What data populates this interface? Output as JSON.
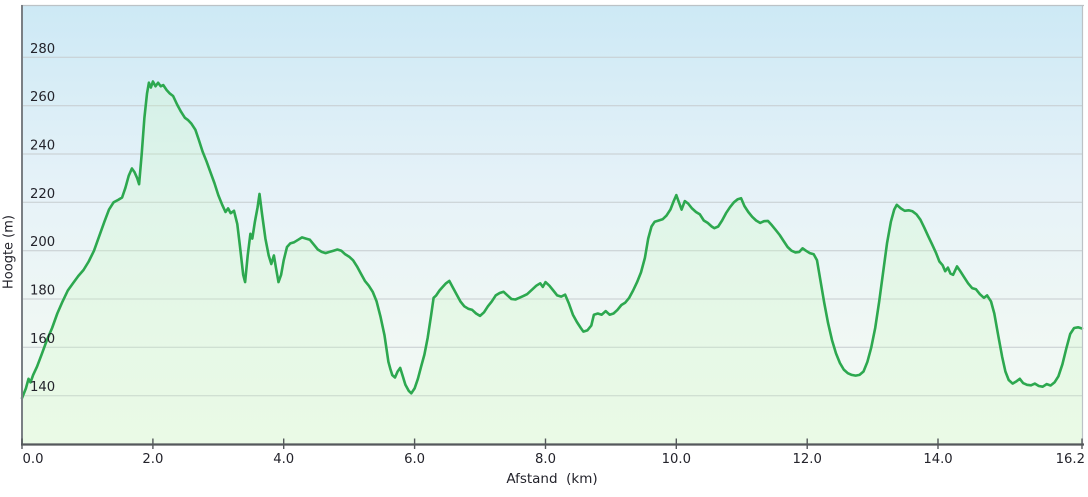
{
  "chart_data": {
    "type": "area",
    "title": "",
    "xlabel": "Afstand  (km)",
    "ylabel": "Hoogte (m)",
    "xlim": [
      0,
      16.2
    ],
    "ylim": [
      120,
      300
    ],
    "x_ticks": [
      0,
      2,
      4,
      6,
      8,
      10,
      12,
      14,
      16.2
    ],
    "x_tick_labels": [
      "0.0",
      "2.0",
      "4.0",
      "6.0",
      "8.0",
      "10.0",
      "12.0",
      "14.0",
      "16.2"
    ],
    "y_ticks": [
      140,
      160,
      180,
      200,
      220,
      240,
      260,
      280
    ],
    "grid": true,
    "legend": false,
    "colors": {
      "line": "#2da84f",
      "fill": "rgba(205,250,195,0.26)",
      "grid": "#c6cccf",
      "axis": "#54585b",
      "axis_left": "#7a7f84",
      "frame": "#bcc2c6",
      "tick_text": "#23232b",
      "bg_top": "#cde9f5",
      "bg_mid": "#e6f2f8",
      "bg_low": "#eff7f4",
      "bg_bottom": "#f4faf3"
    },
    "series": [
      {
        "name": "Hoogte",
        "points": [
          [
            0.0,
            139
          ],
          [
            0.06,
            143
          ],
          [
            0.1,
            147
          ],
          [
            0.13,
            145.5
          ],
          [
            0.17,
            148.5
          ],
          [
            0.23,
            152
          ],
          [
            0.3,
            157
          ],
          [
            0.38,
            163
          ],
          [
            0.46,
            168
          ],
          [
            0.54,
            174
          ],
          [
            0.62,
            179
          ],
          [
            0.7,
            183.5
          ],
          [
            0.78,
            186.5
          ],
          [
            0.86,
            189.5
          ],
          [
            0.94,
            192
          ],
          [
            1.02,
            195.5
          ],
          [
            1.1,
            200
          ],
          [
            1.18,
            206
          ],
          [
            1.26,
            212
          ],
          [
            1.33,
            217
          ],
          [
            1.4,
            220
          ],
          [
            1.47,
            221
          ],
          [
            1.53,
            222
          ],
          [
            1.58,
            226
          ],
          [
            1.63,
            231
          ],
          [
            1.68,
            234
          ],
          [
            1.72,
            232.5
          ],
          [
            1.76,
            230
          ],
          [
            1.79,
            227.5
          ],
          [
            1.83,
            240
          ],
          [
            1.87,
            255
          ],
          [
            1.91,
            265
          ],
          [
            1.94,
            269.5
          ],
          [
            1.97,
            267.5
          ],
          [
            2.0,
            270
          ],
          [
            2.04,
            268
          ],
          [
            2.08,
            269.5
          ],
          [
            2.12,
            268
          ],
          [
            2.16,
            268.5
          ],
          [
            2.21,
            266.5
          ],
          [
            2.26,
            265
          ],
          [
            2.31,
            264
          ],
          [
            2.37,
            260.5
          ],
          [
            2.43,
            257.5
          ],
          [
            2.49,
            255
          ],
          [
            2.54,
            254
          ],
          [
            2.59,
            252.5
          ],
          [
            2.65,
            250
          ],
          [
            2.7,
            246
          ],
          [
            2.76,
            241
          ],
          [
            2.82,
            237
          ],
          [
            2.88,
            232.5
          ],
          [
            2.94,
            228
          ],
          [
            3.0,
            223
          ],
          [
            3.06,
            219
          ],
          [
            3.11,
            216
          ],
          [
            3.15,
            217.5
          ],
          [
            3.19,
            215.5
          ],
          [
            3.24,
            216.5
          ],
          [
            3.29,
            211
          ],
          [
            3.33,
            202
          ],
          [
            3.38,
            190
          ],
          [
            3.41,
            187
          ],
          [
            3.45,
            198
          ],
          [
            3.49,
            207
          ],
          [
            3.52,
            205
          ],
          [
            3.56,
            212
          ],
          [
            3.6,
            218
          ],
          [
            3.63,
            223.5
          ],
          [
            3.67,
            215
          ],
          [
            3.72,
            205
          ],
          [
            3.77,
            198
          ],
          [
            3.81,
            194.5
          ],
          [
            3.85,
            198
          ],
          [
            3.88,
            193
          ],
          [
            3.92,
            187
          ],
          [
            3.96,
            190
          ],
          [
            4.0,
            196
          ],
          [
            4.05,
            201.5
          ],
          [
            4.1,
            203
          ],
          [
            4.16,
            203.5
          ],
          [
            4.22,
            204.5
          ],
          [
            4.28,
            205.5
          ],
          [
            4.34,
            205
          ],
          [
            4.4,
            204.5
          ],
          [
            4.46,
            202.5
          ],
          [
            4.52,
            200.5
          ],
          [
            4.58,
            199.5
          ],
          [
            4.64,
            199
          ],
          [
            4.7,
            199.5
          ],
          [
            4.76,
            200
          ],
          [
            4.82,
            200.5
          ],
          [
            4.88,
            200
          ],
          [
            4.94,
            198.5
          ],
          [
            5.0,
            197.5
          ],
          [
            5.06,
            196
          ],
          [
            5.12,
            193.5
          ],
          [
            5.18,
            190.5
          ],
          [
            5.24,
            187.5
          ],
          [
            5.3,
            185.5
          ],
          [
            5.36,
            183
          ],
          [
            5.42,
            179
          ],
          [
            5.48,
            172.5
          ],
          [
            5.54,
            165
          ],
          [
            5.6,
            154
          ],
          [
            5.63,
            151
          ],
          [
            5.66,
            148.5
          ],
          [
            5.7,
            147.5
          ],
          [
            5.74,
            150
          ],
          [
            5.78,
            151.5
          ],
          [
            5.82,
            148
          ],
          [
            5.86,
            144.5
          ],
          [
            5.91,
            142
          ],
          [
            5.95,
            141
          ],
          [
            6.0,
            143
          ],
          [
            6.05,
            147
          ],
          [
            6.1,
            152
          ],
          [
            6.15,
            157
          ],
          [
            6.2,
            164
          ],
          [
            6.25,
            173
          ],
          [
            6.29,
            180.5
          ],
          [
            6.33,
            181.5
          ],
          [
            6.38,
            183.5
          ],
          [
            6.43,
            185
          ],
          [
            6.48,
            186.5
          ],
          [
            6.53,
            187.5
          ],
          [
            6.58,
            185
          ],
          [
            6.64,
            182
          ],
          [
            6.7,
            179
          ],
          [
            6.76,
            177
          ],
          [
            6.82,
            176
          ],
          [
            6.88,
            175.5
          ],
          [
            6.94,
            174
          ],
          [
            7.0,
            173
          ],
          [
            7.06,
            174.5
          ],
          [
            7.12,
            177
          ],
          [
            7.18,
            179
          ],
          [
            7.24,
            181.5
          ],
          [
            7.3,
            182.5
          ],
          [
            7.36,
            183
          ],
          [
            7.42,
            181.5
          ],
          [
            7.48,
            180
          ],
          [
            7.54,
            179.8
          ],
          [
            7.6,
            180.5
          ],
          [
            7.66,
            181.2
          ],
          [
            7.72,
            182
          ],
          [
            7.8,
            184
          ],
          [
            7.86,
            185.5
          ],
          [
            7.92,
            186.5
          ],
          [
            7.96,
            185
          ],
          [
            8.0,
            187
          ],
          [
            8.06,
            185.5
          ],
          [
            8.12,
            183.5
          ],
          [
            8.18,
            181.5
          ],
          [
            8.24,
            181
          ],
          [
            8.3,
            181.8
          ],
          [
            8.36,
            178
          ],
          [
            8.42,
            173.5
          ],
          [
            8.48,
            170.5
          ],
          [
            8.54,
            168
          ],
          [
            8.58,
            166.5
          ],
          [
            8.64,
            167
          ],
          [
            8.7,
            169
          ],
          [
            8.74,
            173.5
          ],
          [
            8.8,
            174
          ],
          [
            8.86,
            173.5
          ],
          [
            8.92,
            175
          ],
          [
            8.98,
            173.5
          ],
          [
            9.04,
            174
          ],
          [
            9.1,
            175.5
          ],
          [
            9.16,
            177.5
          ],
          [
            9.22,
            178.5
          ],
          [
            9.28,
            180.5
          ],
          [
            9.34,
            183.5
          ],
          [
            9.4,
            187
          ],
          [
            9.46,
            191
          ],
          [
            9.52,
            197
          ],
          [
            9.57,
            205
          ],
          [
            9.62,
            210
          ],
          [
            9.67,
            212
          ],
          [
            9.73,
            212.5
          ],
          [
            9.79,
            213
          ],
          [
            9.85,
            214.5
          ],
          [
            9.91,
            217
          ],
          [
            9.96,
            220.5
          ],
          [
            10.0,
            223
          ],
          [
            10.04,
            220
          ],
          [
            10.08,
            217
          ],
          [
            10.13,
            220.5
          ],
          [
            10.18,
            219.5
          ],
          [
            10.24,
            217.5
          ],
          [
            10.3,
            216
          ],
          [
            10.36,
            215
          ],
          [
            10.42,
            212.5
          ],
          [
            10.48,
            211.5
          ],
          [
            10.54,
            210
          ],
          [
            10.58,
            209.3
          ],
          [
            10.64,
            210
          ],
          [
            10.7,
            212.5
          ],
          [
            10.76,
            215.5
          ],
          [
            10.82,
            218
          ],
          [
            10.88,
            220
          ],
          [
            10.94,
            221.3
          ],
          [
            10.99,
            221.7
          ],
          [
            11.04,
            218.5
          ],
          [
            11.1,
            216
          ],
          [
            11.16,
            214
          ],
          [
            11.22,
            212.5
          ],
          [
            11.28,
            211.5
          ],
          [
            11.34,
            212.2
          ],
          [
            11.4,
            212.3
          ],
          [
            11.46,
            210.5
          ],
          [
            11.52,
            208.5
          ],
          [
            11.58,
            206.5
          ],
          [
            11.64,
            204
          ],
          [
            11.7,
            201.5
          ],
          [
            11.76,
            200
          ],
          [
            11.82,
            199.3
          ],
          [
            11.88,
            199.5
          ],
          [
            11.93,
            201
          ],
          [
            11.98,
            200
          ],
          [
            12.04,
            199
          ],
          [
            12.1,
            198.5
          ],
          [
            12.15,
            196
          ],
          [
            12.2,
            188
          ],
          [
            12.26,
            178.5
          ],
          [
            12.32,
            170
          ],
          [
            12.38,
            163
          ],
          [
            12.44,
            157.5
          ],
          [
            12.5,
            153.5
          ],
          [
            12.56,
            150.8
          ],
          [
            12.62,
            149.3
          ],
          [
            12.68,
            148.6
          ],
          [
            12.74,
            148.3
          ],
          [
            12.8,
            148.6
          ],
          [
            12.86,
            150
          ],
          [
            12.92,
            154
          ],
          [
            12.98,
            160
          ],
          [
            13.04,
            168
          ],
          [
            13.1,
            179
          ],
          [
            13.16,
            191
          ],
          [
            13.22,
            203
          ],
          [
            13.28,
            212
          ],
          [
            13.33,
            217
          ],
          [
            13.37,
            219
          ],
          [
            13.43,
            217.5
          ],
          [
            13.49,
            216.5
          ],
          [
            13.55,
            216.7
          ],
          [
            13.61,
            216.3
          ],
          [
            13.67,
            215
          ],
          [
            13.73,
            212.8
          ],
          [
            13.79,
            209.5
          ],
          [
            13.85,
            206
          ],
          [
            13.91,
            202.5
          ],
          [
            13.97,
            199
          ],
          [
            14.02,
            195.5
          ],
          [
            14.07,
            194
          ],
          [
            14.11,
            191.5
          ],
          [
            14.15,
            193
          ],
          [
            14.19,
            190.5
          ],
          [
            14.23,
            190
          ],
          [
            14.29,
            193.5
          ],
          [
            14.34,
            191.5
          ],
          [
            14.4,
            189
          ],
          [
            14.46,
            186.5
          ],
          [
            14.52,
            184.5
          ],
          [
            14.58,
            184
          ],
          [
            14.64,
            182
          ],
          [
            14.7,
            180.5
          ],
          [
            14.75,
            181.5
          ],
          [
            14.81,
            179
          ],
          [
            14.86,
            174
          ],
          [
            14.92,
            165
          ],
          [
            14.98,
            156
          ],
          [
            15.03,
            150
          ],
          [
            15.08,
            146.5
          ],
          [
            15.14,
            145
          ],
          [
            15.2,
            146
          ],
          [
            15.25,
            147
          ],
          [
            15.3,
            145.2
          ],
          [
            15.36,
            144.5
          ],
          [
            15.42,
            144.3
          ],
          [
            15.48,
            145
          ],
          [
            15.54,
            144
          ],
          [
            15.6,
            143.7
          ],
          [
            15.66,
            144.8
          ],
          [
            15.72,
            144.2
          ],
          [
            15.78,
            145.5
          ],
          [
            15.84,
            148
          ],
          [
            15.9,
            153
          ],
          [
            15.96,
            159.5
          ],
          [
            16.02,
            165.5
          ],
          [
            16.08,
            168
          ],
          [
            16.14,
            168.3
          ],
          [
            16.2,
            167.8
          ]
        ]
      }
    ]
  }
}
